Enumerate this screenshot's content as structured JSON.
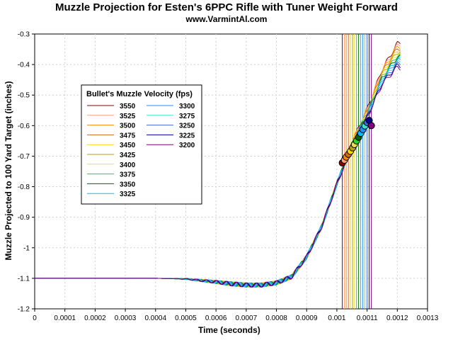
{
  "chart_data": {
    "type": "line",
    "title": "Muzzle Projection for Esten's 6PPC Rifle with Tuner Weight Forward",
    "subtitle": "www.VarmintAl.com",
    "xlabel": "Time (seconds)",
    "ylabel": "Muzzle Projected to 100 Yard Target (inches)",
    "xlim": [
      0,
      0.0013
    ],
    "ylim": [
      -1.2,
      -0.3
    ],
    "x_ticks": [
      "0",
      "0.0001",
      "0.0002",
      "0.0003",
      "0.0004",
      "0.0005",
      "0.0006",
      "0.0007",
      "0.0008",
      "0.0009",
      "0.001",
      "0.0011",
      "0.0012",
      "0.0013"
    ],
    "y_ticks": [
      "-0.3",
      "-0.4",
      "-0.5",
      "-0.6",
      "-0.7",
      "-0.8",
      "-0.9",
      "-1",
      "-1.1",
      "-1.2"
    ],
    "grid": true,
    "legend": {
      "title": "Bullet's Muzzle Velocity (fps)",
      "placement": "upper-left"
    },
    "series": [
      {
        "name": "3550",
        "color": "#8b0000",
        "exit_time": 0.001018,
        "exit_value": -0.722
      },
      {
        "name": "3525",
        "color": "#ffa07a",
        "exit_time": 0.001025,
        "exit_value": -0.713
      },
      {
        "name": "3500",
        "color": "#ff8c00",
        "exit_time": 0.001031,
        "exit_value": -0.703
      },
      {
        "name": "3475",
        "color": "#d2691e",
        "exit_time": 0.001038,
        "exit_value": -0.694
      },
      {
        "name": "3450",
        "color": "#ffd700",
        "exit_time": 0.001045,
        "exit_value": -0.684
      },
      {
        "name": "3425",
        "color": "#b8a000",
        "exit_time": 0.001052,
        "exit_value": -0.673
      },
      {
        "name": "3400",
        "color": "#e8e050",
        "exit_time": 0.001058,
        "exit_value": -0.662
      },
      {
        "name": "3375",
        "color": "#32cd32",
        "exit_time": 0.001065,
        "exit_value": -0.65
      },
      {
        "name": "3350",
        "color": "#006400",
        "exit_time": 0.001072,
        "exit_value": -0.638
      },
      {
        "name": "3325",
        "color": "#00bfff",
        "exit_time": 0.001079,
        "exit_value": -0.625
      },
      {
        "name": "3300",
        "color": "#1e90ff",
        "exit_time": 0.001086,
        "exit_value": -0.613
      },
      {
        "name": "3275",
        "color": "#40e0d0",
        "exit_time": 0.001093,
        "exit_value": -0.601
      },
      {
        "name": "3250",
        "color": "#4169e1",
        "exit_time": 0.0011,
        "exit_value": -0.59
      },
      {
        "name": "3225",
        "color": "#00008b",
        "exit_time": 0.001107,
        "exit_value": -0.583
      },
      {
        "name": "3200",
        "color": "#800080",
        "exit_time": 0.001114,
        "exit_value": -0.6
      }
    ],
    "curve": {
      "x": [
        0,
        0.0001,
        0.0002,
        0.0003,
        0.0004,
        0.0005,
        0.00055,
        0.0006,
        0.00065,
        0.0007,
        0.00075,
        0.0008,
        0.00085,
        0.0009,
        0.00095,
        0.001,
        0.00105,
        0.0011,
        0.00115,
        0.0012
      ],
      "y": [
        -1.1,
        -1.1,
        -1.1,
        -1.1,
        -1.1,
        -1.102,
        -1.107,
        -1.112,
        -1.118,
        -1.122,
        -1.122,
        -1.115,
        -1.095,
        -1.03,
        -0.93,
        -0.79,
        -0.66,
        -0.56,
        -0.44,
        -0.37
      ]
    }
  }
}
